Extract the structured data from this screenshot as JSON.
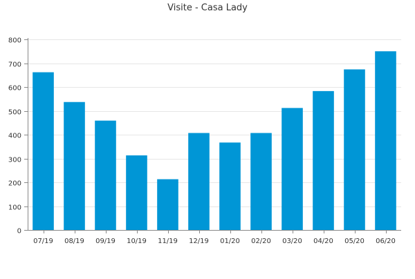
{
  "chart_data": {
    "type": "bar",
    "title": "Visite - Casa Lady",
    "xlabel": "",
    "ylabel": "",
    "categories": [
      "07/19",
      "08/19",
      "09/19",
      "10/19",
      "11/19",
      "12/19",
      "01/20",
      "02/20",
      "03/20",
      "04/20",
      "05/20",
      "06/20"
    ],
    "values": [
      662,
      537,
      459,
      313,
      213,
      407,
      367,
      407,
      512,
      583,
      674,
      750
    ],
    "ylim": [
      0,
      800
    ],
    "yticks": [
      0,
      100,
      200,
      300,
      400,
      500,
      600,
      700,
      800
    ],
    "grid": true,
    "legend": "none",
    "colors": {
      "bar": "#0096d6",
      "grid": "#e6e6e6",
      "axis": "#888888",
      "text": "#333333"
    }
  }
}
